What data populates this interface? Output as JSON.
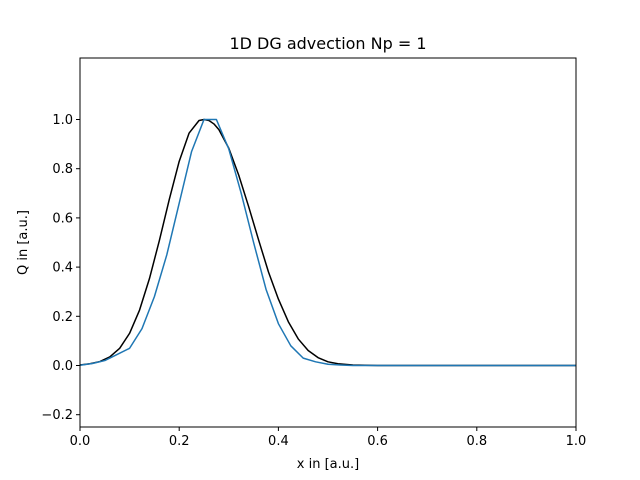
{
  "chart_data": {
    "type": "line",
    "title": "1D DG advection Np = 1",
    "xlabel": "x in [a.u.]",
    "ylabel": "Q in [a.u.]",
    "xlim": [
      0.0,
      1.0
    ],
    "ylim": [
      -0.25,
      1.25
    ],
    "xticks": [
      "0.0",
      "0.2",
      "0.4",
      "0.6",
      "0.8",
      "1.0"
    ],
    "yticks": [
      "−0.2",
      "0.0",
      "0.2",
      "0.4",
      "0.6",
      "0.8",
      "1.0"
    ],
    "grid": false,
    "series": [
      {
        "color": "#000000",
        "x": [
          0.0,
          0.02,
          0.04,
          0.06,
          0.08,
          0.1,
          0.12,
          0.14,
          0.16,
          0.18,
          0.2,
          0.22,
          0.24,
          0.25,
          0.26,
          0.27,
          0.28,
          0.3,
          0.32,
          0.34,
          0.36,
          0.38,
          0.4,
          0.42,
          0.44,
          0.46,
          0.48,
          0.5,
          0.52,
          0.55,
          0.6,
          0.7,
          0.8,
          0.9,
          1.0
        ],
        "y": [
          0.002,
          0.007,
          0.016,
          0.035,
          0.07,
          0.131,
          0.225,
          0.353,
          0.508,
          0.675,
          0.83,
          0.945,
          0.996,
          1.0,
          0.996,
          0.982,
          0.959,
          0.883,
          0.774,
          0.646,
          0.511,
          0.38,
          0.27,
          0.178,
          0.108,
          0.061,
          0.032,
          0.015,
          0.007,
          0.002,
          0.0,
          0.0,
          0.0,
          0.0,
          0.0
        ]
      },
      {
        "color": "#1f77b4",
        "x": [
          0.0,
          0.025,
          0.05,
          0.075,
          0.1,
          0.125,
          0.15,
          0.175,
          0.2,
          0.225,
          0.25,
          0.25,
          0.275,
          0.3,
          0.325,
          0.35,
          0.375,
          0.4,
          0.425,
          0.45,
          0.475,
          0.5,
          0.525,
          0.55,
          0.6,
          0.7,
          0.8,
          0.9,
          1.0
        ],
        "y": [
          0.001,
          0.008,
          0.02,
          0.045,
          0.07,
          0.15,
          0.28,
          0.45,
          0.66,
          0.87,
          1.0,
          1.0,
          1.0,
          0.88,
          0.7,
          0.5,
          0.31,
          0.17,
          0.08,
          0.03,
          0.015,
          0.005,
          0.002,
          0.0,
          0.0,
          0.0,
          0.0,
          0.0,
          0.0
        ]
      }
    ]
  }
}
